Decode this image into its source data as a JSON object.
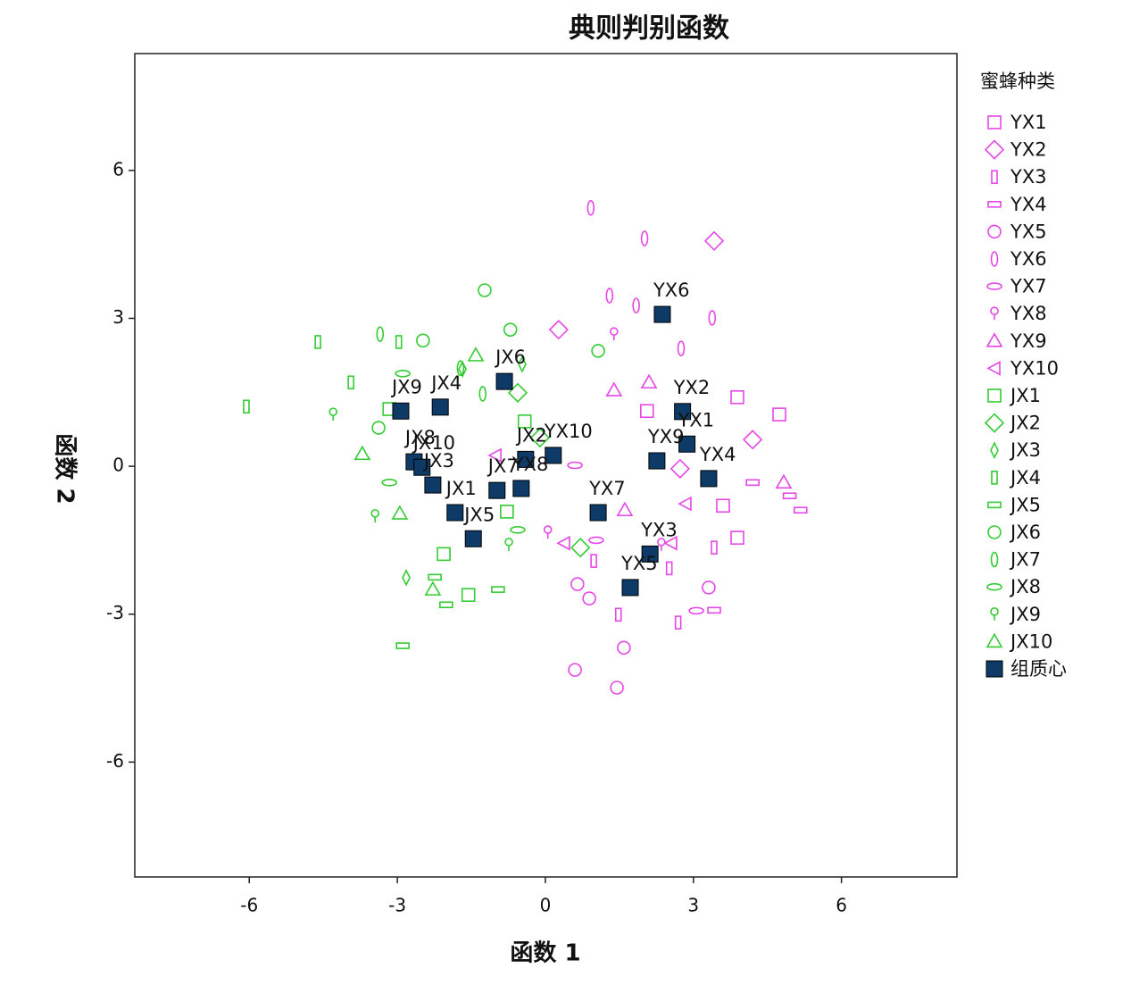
{
  "chart_data": {
    "type": "scatter",
    "title": "典则判别函数",
    "xlabel": "函数 1",
    "ylabel": "函数 2",
    "legend_title": "蜜蜂种类",
    "legend": "right",
    "xlim": [
      -8.32,
      8.34
    ],
    "ylim": [
      -8.33,
      8.37
    ],
    "xticks": [
      -6,
      -3,
      0,
      3,
      6
    ],
    "yticks": [
      -6,
      -3,
      0,
      3,
      6
    ],
    "series": [
      {
        "name": "YX1",
        "color": "#e646e6",
        "marker": "square",
        "x": [
          3.89,
          4.74,
          3.6,
          2.06,
          3.89
        ],
        "y": [
          -1.45,
          1.05,
          -0.8,
          1.12,
          1.4
        ]
      },
      {
        "name": "YX2",
        "color": "#e646e6",
        "marker": "diamond",
        "x": [
          3.42,
          0.27,
          4.2,
          2.73
        ],
        "y": [
          4.57,
          2.77,
          0.54,
          -0.05
        ]
      },
      {
        "name": "YX3",
        "color": "#e646e6",
        "marker": "vrect",
        "x": [
          1.48,
          3.42,
          2.69,
          0.98,
          2.51
        ],
        "y": [
          -3.01,
          -1.65,
          -3.17,
          -1.92,
          -2.07
        ]
      },
      {
        "name": "YX4",
        "color": "#e646e6",
        "marker": "hrect",
        "x": [
          5.17,
          4.2,
          3.42,
          4.95
        ],
        "y": [
          -0.89,
          -0.33,
          -2.92,
          -0.6
        ]
      },
      {
        "name": "YX5",
        "color": "#e646e6",
        "marker": "circle",
        "x": [
          0.6,
          1.45,
          1.59,
          3.31,
          0.89,
          0.65
        ],
        "y": [
          -4.13,
          -4.49,
          -3.68,
          -2.46,
          -2.68,
          -2.39
        ]
      },
      {
        "name": "YX6",
        "color": "#e646e6",
        "marker": "vellipse",
        "x": [
          0.92,
          2.01,
          1.3,
          3.38,
          1.84,
          2.75
        ],
        "y": [
          5.24,
          4.62,
          3.46,
          3.01,
          3.26,
          2.39
        ]
      },
      {
        "name": "YX7",
        "color": "#e646e6",
        "marker": "hellipse",
        "x": [
          3.06,
          1.03,
          0.6
        ],
        "y": [
          -2.93,
          -1.5,
          0.02
        ]
      },
      {
        "name": "YX8",
        "color": "#e646e6",
        "marker": "pin",
        "x": [
          1.39,
          2.35,
          0.05
        ],
        "y": [
          2.68,
          -1.59,
          -1.34
        ]
      },
      {
        "name": "YX9",
        "color": "#e646e6",
        "marker": "triangle",
        "x": [
          4.83,
          1.39,
          1.61,
          2.1
        ],
        "y": [
          -0.33,
          1.54,
          -0.89,
          1.7
        ]
      },
      {
        "name": "YX10",
        "color": "#e646e6",
        "marker": "ltriangle",
        "x": [
          2.55,
          -1.01,
          2.84,
          0.38
        ],
        "y": [
          -1.56,
          0.22,
          -0.76,
          -1.56
        ]
      },
      {
        "name": "JX1",
        "color": "#33cc33",
        "marker": "square",
        "x": [
          -1.56,
          -2.06,
          -3.16,
          -0.78,
          -0.42
        ],
        "y": [
          -2.61,
          -1.78,
          1.16,
          -0.92,
          0.91
        ]
      },
      {
        "name": "JX2",
        "color": "#33cc33",
        "marker": "diamond",
        "x": [
          0.71,
          -0.56,
          -0.11
        ],
        "y": [
          -1.65,
          1.49,
          0.58
        ]
      },
      {
        "name": "JX3",
        "color": "#33cc33",
        "marker": "ndiamond",
        "x": [
          -2.82,
          -1.68,
          -0.47
        ],
        "y": [
          -2.26,
          1.97,
          2.07
        ]
      },
      {
        "name": "JX4",
        "color": "#33cc33",
        "marker": "vrect",
        "x": [
          -4.61,
          -6.06,
          -3.94,
          -2.97
        ],
        "y": [
          2.52,
          1.21,
          1.7,
          2.52
        ]
      },
      {
        "name": "JX5",
        "color": "#33cc33",
        "marker": "hrect",
        "x": [
          -2.89,
          -0.96,
          -2.01,
          -2.24
        ],
        "y": [
          -3.64,
          -2.5,
          -2.81,
          -2.25
        ]
      },
      {
        "name": "JX6",
        "color": "#33cc33",
        "marker": "circle",
        "x": [
          -1.23,
          -0.71,
          -2.48,
          1.07,
          -3.38
        ],
        "y": [
          3.57,
          2.77,
          2.55,
          2.34,
          0.78
        ]
      },
      {
        "name": "JX7",
        "color": "#33cc33",
        "marker": "vellipse",
        "x": [
          -3.35,
          -1.72,
          -1.27
        ],
        "y": [
          2.68,
          1.99,
          1.47
        ]
      },
      {
        "name": "JX8",
        "color": "#33cc33",
        "marker": "hellipse",
        "x": [
          -2.89,
          -3.16,
          -0.56
        ],
        "y": [
          1.88,
          -0.33,
          -1.29
        ]
      },
      {
        "name": "JX9",
        "color": "#33cc33",
        "marker": "pin",
        "x": [
          -4.3,
          -3.45,
          -0.74
        ],
        "y": [
          1.05,
          -1.01,
          -1.59
        ]
      },
      {
        "name": "JX10",
        "color": "#33cc33",
        "marker": "triangle",
        "x": [
          -2.28,
          -2.95,
          -3.71,
          -1.41
        ],
        "y": [
          -2.5,
          -0.96,
          0.25,
          2.25
        ]
      }
    ],
    "centroids": {
      "name": "组质心",
      "color": "#0d3a66",
      "points": [
        {
          "label": "JX9",
          "x": -2.93,
          "y": 1.12
        },
        {
          "label": "JX4",
          "x": -2.13,
          "y": 1.2
        },
        {
          "label": "JX6",
          "x": -0.83,
          "y": 1.72
        },
        {
          "label": "YX6",
          "x": 2.37,
          "y": 3.08
        },
        {
          "label": "YX2",
          "x": 2.78,
          "y": 1.11
        },
        {
          "label": "YX1",
          "x": 2.87,
          "y": 0.45
        },
        {
          "label": "YX9",
          "x": 2.26,
          "y": 0.11
        },
        {
          "label": "YX4",
          "x": 3.31,
          "y": -0.25
        },
        {
          "label": "YX10",
          "x": 0.16,
          "y": 0.22
        },
        {
          "label": "JX2",
          "x": -0.4,
          "y": 0.14
        },
        {
          "label": "JX8",
          "x": -2.66,
          "y": 0.09
        },
        {
          "label": "JX10",
          "x": -2.5,
          "y": -0.02
        },
        {
          "label": "JX3",
          "x": -2.28,
          "y": -0.38
        },
        {
          "label": "JX7",
          "x": -0.98,
          "y": -0.49
        },
        {
          "label": "YX8",
          "x": -0.49,
          "y": -0.45
        },
        {
          "label": "JX1",
          "x": -1.83,
          "y": -0.94
        },
        {
          "label": "JX5",
          "x": -1.46,
          "y": -1.47
        },
        {
          "label": "YX7",
          "x": 1.07,
          "y": -0.94
        },
        {
          "label": "YX3",
          "x": 2.12,
          "y": -1.78
        },
        {
          "label": "YX5",
          "x": 1.72,
          "y": -2.46
        }
      ]
    }
  }
}
